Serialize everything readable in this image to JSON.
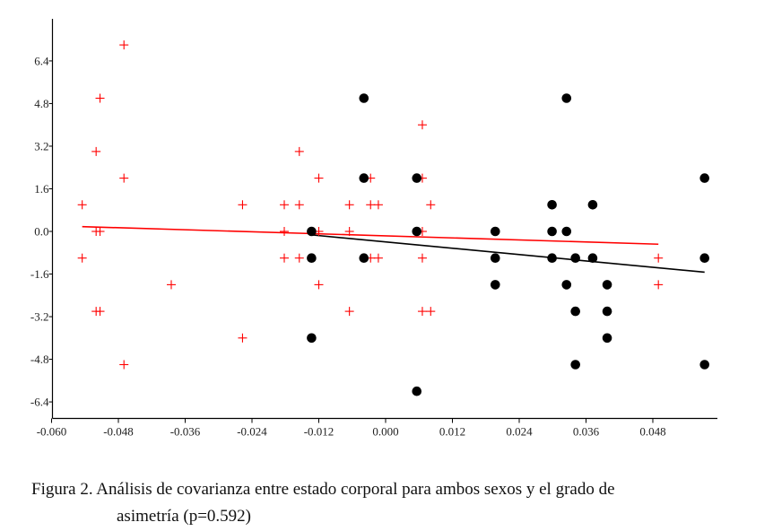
{
  "chart_data": {
    "type": "scatter",
    "title": "",
    "xlabel": "",
    "ylabel": "",
    "xlim": [
      -0.06,
      0.06
    ],
    "ylim": [
      -7,
      8
    ],
    "grid": false,
    "x_ticks": [
      "-0.060",
      "-0.048",
      "-0.036",
      "-0.024",
      "-0.012",
      "0.000",
      "0.012",
      "0.024",
      "0.036",
      "0.048"
    ],
    "x_tick_values": [
      -0.06,
      -0.048,
      -0.036,
      -0.024,
      -0.012,
      0.0,
      0.012,
      0.024,
      0.036,
      0.048
    ],
    "y_ticks": [
      "6.4",
      "4.8",
      "3.2",
      "1.6",
      "0.0",
      "-1.6",
      "-3.2",
      "-4.8",
      "-6.4"
    ],
    "y_tick_values": [
      6.4,
      4.8,
      3.2,
      1.6,
      0.0,
      -1.6,
      -3.2,
      -4.8,
      -6.4
    ],
    "series": [
      {
        "name": "red-cross",
        "marker": "cross",
        "color": "#ff0000",
        "points": [
          [
            -0.047,
            7
          ],
          [
            -0.0513,
            5
          ],
          [
            -0.052,
            3
          ],
          [
            -0.047,
            2
          ],
          [
            -0.0545,
            1
          ],
          [
            -0.0545,
            -1
          ],
          [
            -0.052,
            0
          ],
          [
            -0.0513,
            0
          ],
          [
            -0.0385,
            -2
          ],
          [
            -0.052,
            -3
          ],
          [
            -0.0513,
            -3
          ],
          [
            -0.047,
            -5
          ],
          [
            -0.0257,
            1
          ],
          [
            -0.0257,
            -4
          ],
          [
            -0.0182,
            1
          ],
          [
            -0.0182,
            0
          ],
          [
            -0.0182,
            -1
          ],
          [
            -0.0155,
            3
          ],
          [
            -0.0155,
            1
          ],
          [
            -0.0155,
            -1
          ],
          [
            -0.012,
            2
          ],
          [
            -0.012,
            0
          ],
          [
            -0.012,
            -2
          ],
          [
            -0.0065,
            1
          ],
          [
            -0.0065,
            0
          ],
          [
            -0.0065,
            -3
          ],
          [
            -0.0027,
            2
          ],
          [
            -0.0027,
            1
          ],
          [
            -0.0013,
            1
          ],
          [
            -0.0027,
            -1
          ],
          [
            -0.0013,
            -1
          ],
          [
            0.0066,
            4
          ],
          [
            0.0066,
            2
          ],
          [
            0.0066,
            0
          ],
          [
            0.0066,
            -1
          ],
          [
            0.0066,
            -3
          ],
          [
            0.0081,
            1
          ],
          [
            0.0081,
            -3
          ],
          [
            0.049,
            -1
          ],
          [
            0.049,
            -2
          ]
        ],
        "fit": [
          [
            -0.0545,
            0.18
          ],
          [
            0.049,
            -0.48
          ]
        ]
      },
      {
        "name": "black-dot",
        "marker": "dot",
        "color": "#000000",
        "points": [
          [
            -0.0133,
            0
          ],
          [
            -0.0133,
            -1
          ],
          [
            -0.0133,
            -4
          ],
          [
            -0.0039,
            5
          ],
          [
            -0.0039,
            2
          ],
          [
            -0.0039,
            -1
          ],
          [
            0.0056,
            2
          ],
          [
            0.0056,
            0
          ],
          [
            0.0056,
            -6
          ],
          [
            0.0197,
            0
          ],
          [
            0.0197,
            -1
          ],
          [
            0.0197,
            -2
          ],
          [
            0.0299,
            1
          ],
          [
            0.0299,
            0
          ],
          [
            0.0299,
            -1
          ],
          [
            0.0325,
            5
          ],
          [
            0.0325,
            0
          ],
          [
            0.0325,
            -2
          ],
          [
            0.0341,
            -1
          ],
          [
            0.0341,
            -3
          ],
          [
            0.0341,
            -5
          ],
          [
            0.0372,
            1
          ],
          [
            0.0372,
            -1
          ],
          [
            0.0398,
            -2
          ],
          [
            0.0398,
            -3
          ],
          [
            0.0398,
            -4
          ],
          [
            0.0573,
            2
          ],
          [
            0.0573,
            -1
          ],
          [
            0.0573,
            -5
          ]
        ],
        "fit": [
          [
            -0.0133,
            -0.13
          ],
          [
            0.0573,
            -1.53
          ]
        ]
      }
    ]
  },
  "caption": {
    "line1": "Figura 2.  Análisis de covarianza entre estado corporal para ambos sexos y el grado de",
    "line2": "asimetría (p=0.592)"
  }
}
